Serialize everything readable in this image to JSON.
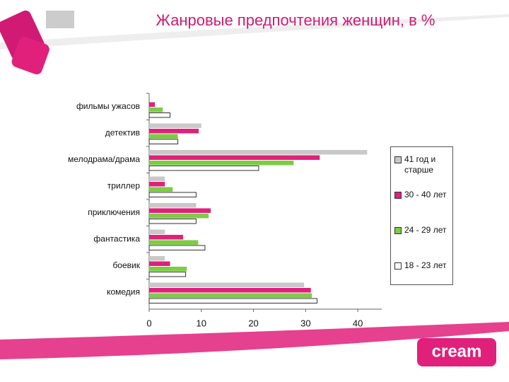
{
  "chart_data": {
    "type": "bar",
    "orientation": "horizontal",
    "title": "Жанровые предпочтения женщин, в %",
    "categories": [
      "фильмы ужасов",
      "детектив",
      "мелодрама/драма",
      "триллер",
      "приключения",
      "фантастика",
      "боевик",
      "комедия"
    ],
    "series": [
      {
        "name": "41 год и старше",
        "color": "#c9c9c9",
        "values": [
          0,
          10,
          41.8,
          3,
          9,
          3,
          3,
          29.7
        ]
      },
      {
        "name": "30 - 40 лет",
        "color": "#e0207a",
        "values": [
          1.1,
          9.5,
          32.7,
          3,
          11.8,
          6.5,
          4,
          31
        ]
      },
      {
        "name": "24 - 29 лет",
        "color": "#7ccc44",
        "values": [
          2.6,
          5.5,
          27.7,
          4.5,
          11.4,
          9.4,
          7.2,
          31.2
        ]
      },
      {
        "name": "18 - 23 лет",
        "color": "#ffffff",
        "values": [
          4,
          5.5,
          21,
          9,
          9,
          10.7,
          7,
          32.2
        ]
      }
    ],
    "xlim": [
      0,
      45
    ],
    "xticks": [
      0,
      10,
      20,
      30,
      40
    ],
    "legend": "right",
    "brand": "cream"
  }
}
